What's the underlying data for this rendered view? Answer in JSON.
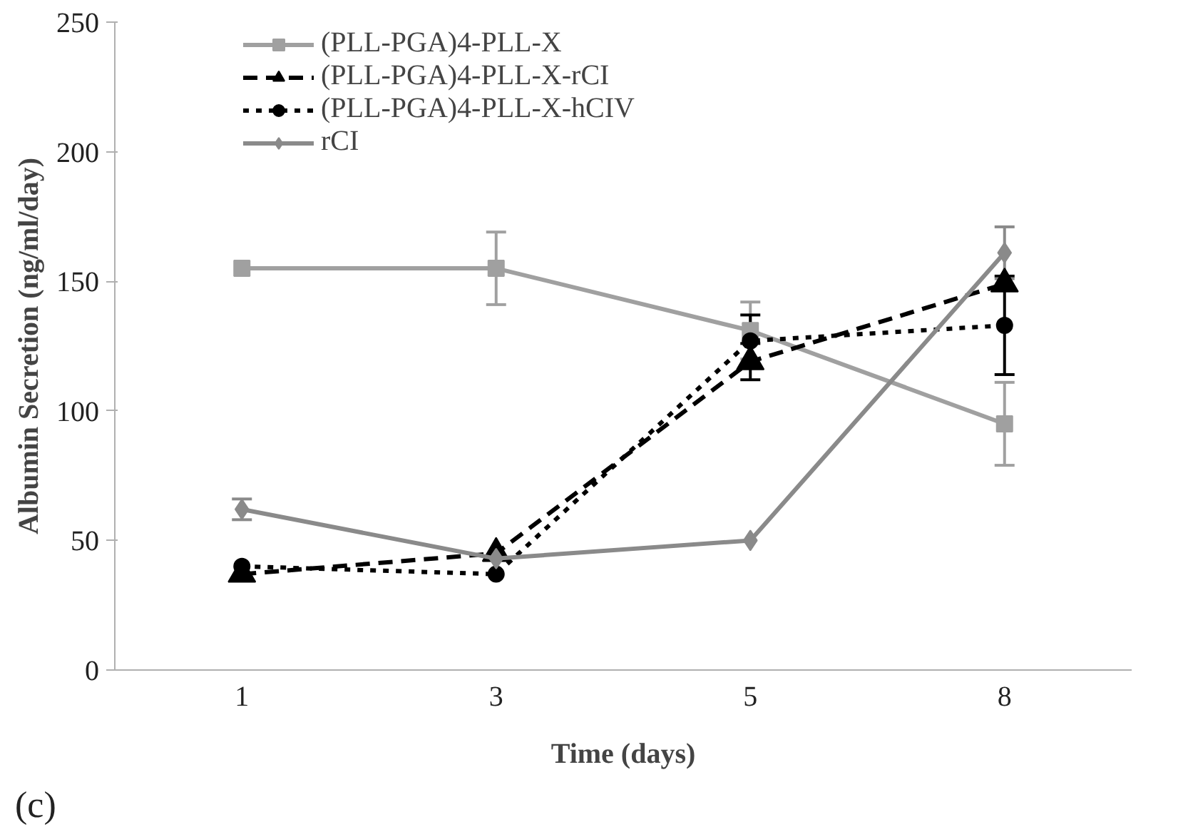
{
  "chart_data": {
    "type": "line",
    "xlabel": "Time (days)",
    "ylabel": "Albumin Secretion (ng/ml/day)",
    "categories": [
      "1",
      "3",
      "5",
      "8"
    ],
    "ylim": [
      0,
      250
    ],
    "yticks": [
      0,
      50,
      100,
      150,
      200,
      250
    ],
    "grid": false,
    "legend": "top left",
    "annotations": [
      "(c)"
    ],
    "series": [
      {
        "name": "(PLL-PGA)4-PLL-X",
        "color": "#a0a0a0",
        "marker": "square",
        "line_style": "solid",
        "values": [
          155,
          155,
          131,
          95
        ],
        "errors": [
          null,
          14,
          11,
          16
        ]
      },
      {
        "name": "(PLL-PGA)4-PLL-X-rCI",
        "color": "#000000",
        "marker": "triangle",
        "line_style": "dashed",
        "values": [
          37,
          45,
          119,
          149
        ],
        "errors": [
          null,
          null,
          7,
          null
        ]
      },
      {
        "name": "(PLL-PGA)4-PLL-X-hCIV",
        "color": "#000000",
        "marker": "circle",
        "line_style": "dotted",
        "values": [
          40,
          37,
          127,
          133
        ],
        "errors": [
          null,
          null,
          10,
          19
        ]
      },
      {
        "name": "rCI",
        "color": "#8a8a8a",
        "marker": "diamond",
        "line_style": "solid",
        "values": [
          62,
          43,
          50,
          161
        ],
        "errors": [
          4,
          null,
          null,
          10
        ]
      }
    ]
  }
}
